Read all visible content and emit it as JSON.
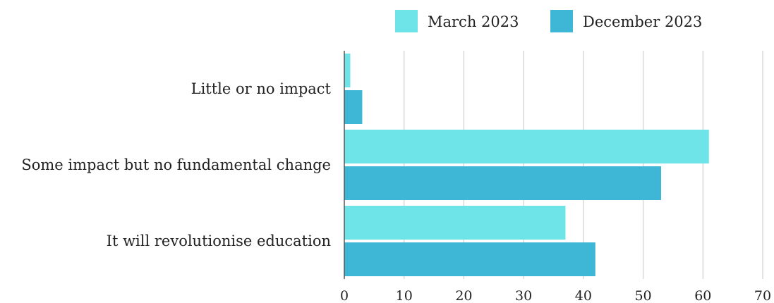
{
  "chart_data": {
    "type": "bar",
    "orientation": "horizontal",
    "categories": [
      "Little or no impact",
      "Some impact but no fundamental change",
      "It will revolutionise education"
    ],
    "series": [
      {
        "name": "March 2023",
        "values": [
          1,
          61,
          37
        ],
        "color": "#6ee3e8"
      },
      {
        "name": "December 2023",
        "values": [
          3,
          53,
          42
        ],
        "color": "#3eb6d6"
      }
    ],
    "xlim": [
      0,
      70
    ],
    "xticks": [
      0,
      10,
      20,
      30,
      40,
      50,
      60,
      70
    ],
    "grid": true,
    "legend_position": "top"
  }
}
